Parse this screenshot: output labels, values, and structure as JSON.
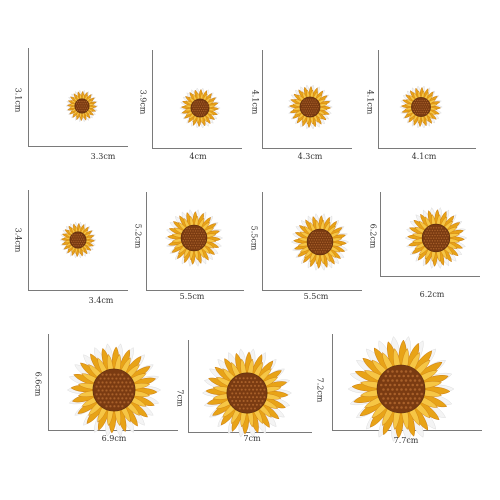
{
  "patches": [
    {
      "name": "patch-1",
      "width_label": "3.3cm",
      "height_label": "3.1cm"
    },
    {
      "name": "patch-2",
      "width_label": "4cm",
      "height_label": "3.9cm"
    },
    {
      "name": "patch-3",
      "width_label": "4.3cm",
      "height_label": "4.1cm"
    },
    {
      "name": "patch-4",
      "width_label": "4.1cm",
      "height_label": "4.1cm"
    },
    {
      "name": "patch-5",
      "width_label": "3.4cm",
      "height_label": "3.4cm"
    },
    {
      "name": "patch-6",
      "width_label": "5.5cm",
      "height_label": "5.2cm"
    },
    {
      "name": "patch-7",
      "width_label": "5.5cm",
      "height_label": "5.5cm"
    },
    {
      "name": "patch-8",
      "width_label": "6.2cm",
      "height_label": "6.2cm"
    },
    {
      "name": "patch-9",
      "width_label": "6.9cm",
      "height_label": "6.6cm"
    },
    {
      "name": "patch-10",
      "width_label": "7cm",
      "height_label": "7cm"
    },
    {
      "name": "patch-11",
      "width_label": "7.7cm",
      "height_label": "7.2cm"
    }
  ],
  "colors": {
    "petal_outer": "#e8a317",
    "petal_inner": "#f6c645",
    "petal_edge": "#c97a10",
    "center": "#7a3b12",
    "center_dot": "#a8602a",
    "border": "#f4f4f4",
    "guide_line": "#7a7a7a"
  }
}
